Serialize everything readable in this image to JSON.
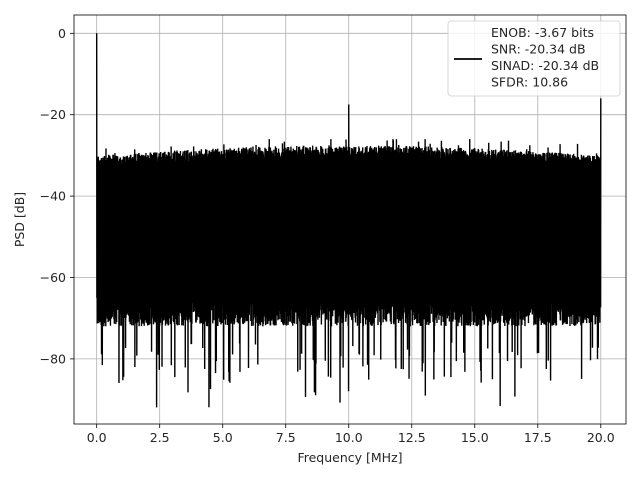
{
  "chart_data": {
    "type": "line",
    "title": "",
    "xlabel": "Frequency [MHz]",
    "ylabel": "PSD [dB]",
    "xlim": [
      -0.9,
      21.0
    ],
    "ylim": [
      -96,
      4.5
    ],
    "xticks": [
      0.0,
      2.5,
      5.0,
      7.5,
      10.0,
      12.5,
      15.0,
      17.5,
      20.0
    ],
    "xtick_labels": [
      "0.0",
      "2.5",
      "5.0",
      "7.5",
      "10.0",
      "12.5",
      "15.0",
      "17.5",
      "20.0"
    ],
    "yticks": [
      0,
      -20,
      -40,
      -60,
      -80
    ],
    "ytick_labels": [
      "0",
      "−20",
      "−40",
      "−60",
      "−80"
    ],
    "grid": true,
    "legend_position": "top-right",
    "series": [
      {
        "line_color": "#000000",
        "x_range": [
          0.0,
          20.0
        ],
        "noise_band": {
          "typical_top": -30,
          "upper_envelope": -27,
          "typical_bottom": -72,
          "deepest_dips": -92
        },
        "peaks": [
          {
            "x": 0.0,
            "y": 0.0
          },
          {
            "x": 10.0,
            "y": -17.5
          },
          {
            "x": 20.0,
            "y": -16.0
          }
        ]
      }
    ],
    "legend_text": [
      "ENOB: -3.67 bits",
      "SNR: -20.34 dB",
      "SINAD: -20.34 dB",
      "SFDR: 10.86"
    ]
  }
}
